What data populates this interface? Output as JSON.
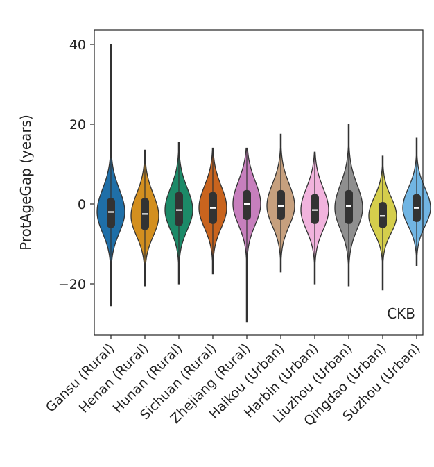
{
  "chart_data": {
    "type": "violin",
    "ylabel": "ProtAgeGap (years)",
    "xlabel": "",
    "ylim": [
      -33,
      44
    ],
    "yticks": [
      40,
      20,
      0,
      -20
    ],
    "ytick_labels": [
      "40",
      "20",
      "0",
      "−20"
    ],
    "grid": false,
    "annotation": "CKB",
    "categories": [
      "Gansu (Rural)",
      "Henan (Rural)",
      "Hunan (Rural)",
      "Sichuan (Rural)",
      "Zhejiang (Rural)",
      "Haikou (Urban)",
      "Harbin (Urban)",
      "Liuzhou (Urban)",
      "Qingdao (Urban)",
      "Suzhou (Urban)"
    ],
    "colors": [
      "#1f6fa8",
      "#d38f1f",
      "#1c8a68",
      "#c9641e",
      "#c77fbd",
      "#c6a07e",
      "#f1b3dd",
      "#8f8f8f",
      "#d5ce4c",
      "#71b5e3"
    ],
    "groups": [
      {
        "category": "Gansu (Rural)",
        "min": -25.5,
        "q1": -6.0,
        "median": -2.0,
        "q3": 1.5,
        "max": 40.0,
        "mode": -2.0,
        "sd": 5.2
      },
      {
        "category": "Henan (Rural)",
        "min": -20.5,
        "q1": -6.5,
        "median": -2.5,
        "q3": 1.5,
        "max": 13.5,
        "mode": -3.0,
        "sd": 5.0
      },
      {
        "category": "Hunan (Rural)",
        "min": -20.0,
        "q1": -5.5,
        "median": -1.5,
        "q3": 3.0,
        "max": 15.5,
        "mode": -1.5,
        "sd": 5.0
      },
      {
        "category": "Sichuan (Rural)",
        "min": -17.5,
        "q1": -5.0,
        "median": -1.0,
        "q3": 3.0,
        "max": 14.0,
        "mode": -1.0,
        "sd": 5.0
      },
      {
        "category": "Zhejiang (Rural)",
        "min": -29.5,
        "q1": -4.0,
        "median": 0.0,
        "q3": 3.5,
        "max": 14.0,
        "mode": 0.0,
        "sd": 5.2
      },
      {
        "category": "Haikou (Urban)",
        "min": -17.0,
        "q1": -4.0,
        "median": -0.5,
        "q3": 3.5,
        "max": 17.5,
        "mode": -0.5,
        "sd": 5.0
      },
      {
        "category": "Harbin (Urban)",
        "min": -20.0,
        "q1": -5.0,
        "median": -1.5,
        "q3": 2.5,
        "max": 13.0,
        "mode": -1.5,
        "sd": 5.0
      },
      {
        "category": "Liuzhou (Urban)",
        "min": -20.5,
        "q1": -5.0,
        "median": -0.5,
        "q3": 3.5,
        "max": 20.0,
        "mode": -1.0,
        "sd": 5.3
      },
      {
        "category": "Qingdao (Urban)",
        "min": -21.5,
        "q1": -6.0,
        "median": -3.0,
        "q3": 0.5,
        "max": 12.0,
        "mode": -3.0,
        "sd": 4.3
      },
      {
        "category": "Suzhou (Urban)",
        "min": -15.5,
        "q1": -4.5,
        "median": -1.0,
        "q3": 2.5,
        "max": 16.5,
        "mode": -1.0,
        "sd": 4.5
      }
    ]
  }
}
